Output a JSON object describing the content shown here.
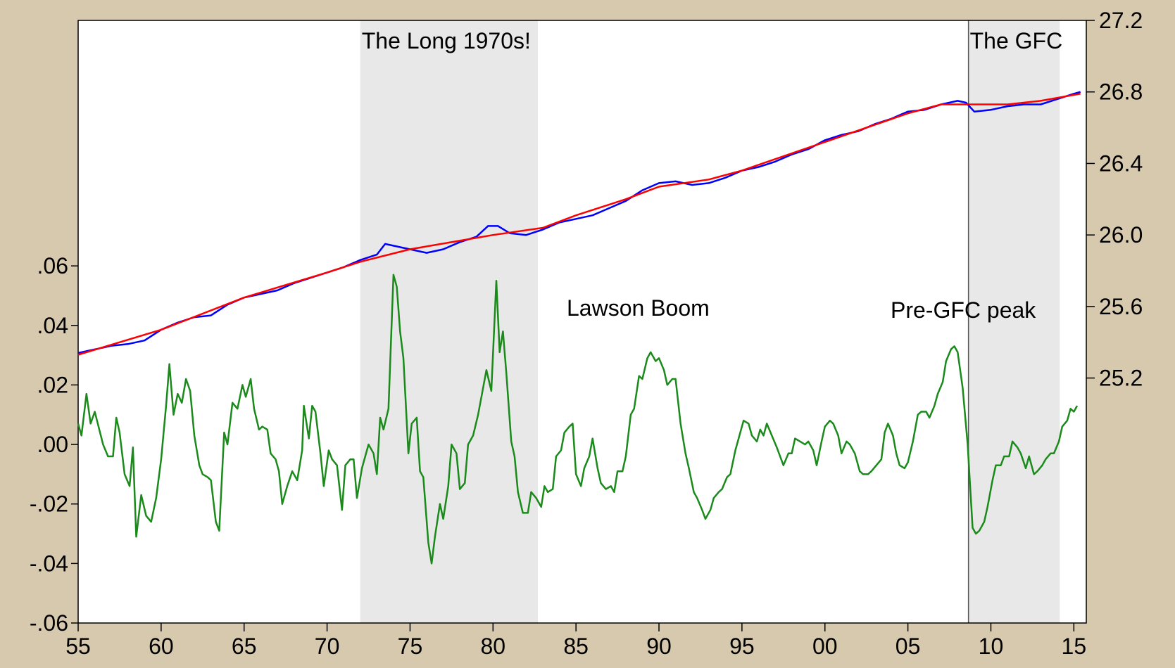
{
  "chart_data": {
    "type": "line",
    "xlim": [
      1955,
      2015.75
    ],
    "xticks": [
      {
        "value": 1955,
        "label": "55"
      },
      {
        "value": 1960,
        "label": "60"
      },
      {
        "value": 1965,
        "label": "65"
      },
      {
        "value": 1970,
        "label": "70"
      },
      {
        "value": 1975,
        "label": "75"
      },
      {
        "value": 1980,
        "label": "80"
      },
      {
        "value": 1985,
        "label": "85"
      },
      {
        "value": 1990,
        "label": "90"
      },
      {
        "value": 1995,
        "label": "95"
      },
      {
        "value": 2000,
        "label": "00"
      },
      {
        "value": 2005,
        "label": "05"
      },
      {
        "value": 2010,
        "label": "10"
      },
      {
        "value": 2015,
        "label": "15"
      }
    ],
    "ylim": [
      -0.06,
      0.1425
    ],
    "yticks": [
      {
        "value": -0.06,
        "label": "-.06"
      },
      {
        "value": -0.04,
        "label": "-.04"
      },
      {
        "value": -0.02,
        "label": "-.02"
      },
      {
        "value": 0,
        "label": ".00"
      },
      {
        "value": 0.02,
        "label": ".02"
      },
      {
        "value": 0.04,
        "label": ".04"
      },
      {
        "value": 0.06,
        "label": ".06"
      }
    ],
    "y2lim": [
      23.83,
      27.2
    ],
    "y2ticks": [
      25.2,
      25.6,
      {
        "value": 26.0,
        "label": "26.0"
      },
      26.4,
      26.8,
      27.2
    ],
    "shaded_regions": [
      {
        "start": 1972.0,
        "end": 1982.7,
        "label": "The Long 1970s!",
        "color": "#e8e8e8"
      },
      {
        "start": 2008.65,
        "end": 2014.15,
        "label": "The GFC",
        "color": "#e8e8e8"
      }
    ],
    "annotations": [
      "Lawson Boom",
      "Pre-GFC peak"
    ],
    "series": [
      {
        "color": "#1a8a1a",
        "axis": "y",
        "x": [
          1955.0,
          1955.2,
          1955.5,
          1955.75,
          1956.0,
          1956.5,
          1956.8,
          1957.1,
          1957.3,
          1957.5,
          1957.8,
          1958.1,
          1958.3,
          1958.5,
          1958.8,
          1959.1,
          1959.4,
          1959.7,
          1960.0,
          1960.3,
          1960.5,
          1960.75,
          1961.0,
          1961.25,
          1961.5,
          1961.75,
          1962.0,
          1962.3,
          1962.5,
          1962.8,
          1963.0,
          1963.3,
          1963.5,
          1963.8,
          1964.0,
          1964.3,
          1964.6,
          1964.9,
          1965.1,
          1965.4,
          1965.6,
          1965.9,
          1966.1,
          1966.4,
          1966.6,
          1966.9,
          1967.1,
          1967.3,
          1967.6,
          1967.9,
          1968.2,
          1968.5,
          1968.6,
          1968.9,
          1969.1,
          1969.3,
          1969.6,
          1969.8,
          1970.1,
          1970.3,
          1970.6,
          1970.9,
          1971.1,
          1971.4,
          1971.6,
          1971.8,
          1972.1,
          1972.3,
          1972.5,
          1972.8,
          1973.0,
          1973.2,
          1973.4,
          1973.7,
          1974.0,
          1974.2,
          1974.4,
          1974.6,
          1974.9,
          1975.1,
          1975.4,
          1975.6,
          1975.8,
          1976.1,
          1976.3,
          1976.5,
          1976.8,
          1977.0,
          1977.3,
          1977.5,
          1977.8,
          1978.0,
          1978.3,
          1978.5,
          1978.8,
          1979.1,
          1979.4,
          1979.6,
          1979.9,
          1980.2,
          1980.4,
          1980.6,
          1980.8,
          1981.1,
          1981.3,
          1981.5,
          1981.8,
          1982.1,
          1982.3,
          1982.6,
          1982.9,
          1983.1,
          1983.3,
          1983.6,
          1983.8,
          1984.1,
          1984.3,
          1984.6,
          1984.8,
          1985.0,
          1985.3,
          1985.5,
          1985.8,
          1986.0,
          1986.3,
          1986.5,
          1986.8,
          1987.1,
          1987.3,
          1987.5,
          1987.8,
          1988.0,
          1988.3,
          1988.5,
          1988.8,
          1989.0,
          1989.3,
          1989.5,
          1989.8,
          1990.0,
          1990.3,
          1990.5,
          1990.8,
          1991.0,
          1991.3,
          1991.6,
          1991.8,
          1992.1,
          1992.3,
          1992.6,
          1992.8,
          1993.1,
          1993.3,
          1993.6,
          1993.8,
          1994.1,
          1994.3,
          1994.6,
          1994.9,
          1995.1,
          1995.4,
          1995.6,
          1995.9,
          1996.1,
          1996.3,
          1996.5,
          1996.8,
          1997.1,
          1997.3,
          1997.5,
          1997.8,
          1998.0,
          1998.2,
          1998.5,
          1998.8,
          1999.0,
          1999.3,
          1999.5,
          1999.8,
          2000.0,
          2000.3,
          2000.5,
          2000.8,
          2001.0,
          2001.3,
          2001.5,
          2001.8,
          2002.1,
          2002.3,
          2002.6,
          2002.8,
          2003.1,
          2003.4,
          2003.6,
          2003.8,
          2004.1,
          2004.3,
          2004.5,
          2004.8,
          2005.0,
          2005.3,
          2005.6,
          2005.8,
          2006.1,
          2006.3,
          2006.6,
          2006.8,
          2007.1,
          2007.3,
          2007.6,
          2007.8,
          2008.0,
          2008.3,
          2008.6,
          2008.9,
          2009.1,
          2009.3,
          2009.6,
          2009.8,
          2010.1,
          2010.3,
          2010.6,
          2010.8,
          2011.1,
          2011.3,
          2011.6,
          2011.8,
          2012.1,
          2012.3,
          2012.6,
          2012.8,
          2013.1,
          2013.3,
          2013.6,
          2013.8,
          2014.1,
          2014.3,
          2014.6,
          2014.8,
          2015.0,
          2015.2
        ],
        "values": [
          0.007,
          0.003,
          0.017,
          0.007,
          0.011,
          0.0,
          -0.004,
          -0.004,
          0.009,
          0.004,
          -0.01,
          -0.014,
          -0.001,
          -0.031,
          -0.017,
          -0.024,
          -0.026,
          -0.018,
          -0.005,
          0.013,
          0.027,
          0.01,
          0.017,
          0.014,
          0.022,
          0.018,
          0.003,
          -0.007,
          -0.01,
          -0.011,
          -0.012,
          -0.026,
          -0.029,
          0.004,
          0.0,
          0.014,
          0.012,
          0.02,
          0.016,
          0.022,
          0.012,
          0.005,
          0.006,
          0.005,
          -0.003,
          -0.005,
          -0.009,
          -0.02,
          -0.014,
          -0.009,
          -0.012,
          -0.002,
          0.013,
          0.002,
          0.013,
          0.011,
          -0.003,
          -0.014,
          -0.002,
          -0.005,
          -0.007,
          -0.022,
          -0.007,
          -0.005,
          -0.005,
          -0.018,
          -0.008,
          -0.004,
          0.0,
          -0.003,
          -0.01,
          0.009,
          0.005,
          0.012,
          0.057,
          0.053,
          0.038,
          0.029,
          -0.003,
          0.007,
          0.009,
          -0.009,
          -0.011,
          -0.033,
          -0.04,
          -0.031,
          -0.02,
          -0.025,
          -0.014,
          0.0,
          -0.003,
          -0.015,
          -0.013,
          0.0,
          0.003,
          0.01,
          0.019,
          0.025,
          0.018,
          0.055,
          0.031,
          0.038,
          0.024,
          0.001,
          -0.004,
          -0.016,
          -0.023,
          -0.023,
          -0.016,
          -0.018,
          -0.021,
          -0.014,
          -0.016,
          -0.015,
          -0.004,
          -0.002,
          0.004,
          0.006,
          0.007,
          -0.01,
          -0.014,
          -0.008,
          -0.004,
          0.002,
          -0.008,
          -0.013,
          -0.015,
          -0.014,
          -0.016,
          -0.009,
          -0.009,
          -0.004,
          0.01,
          0.012,
          0.023,
          0.022,
          0.029,
          0.031,
          0.028,
          0.029,
          0.025,
          0.02,
          0.022,
          0.022,
          0.007,
          -0.003,
          -0.008,
          -0.016,
          -0.018,
          -0.022,
          -0.025,
          -0.022,
          -0.018,
          -0.016,
          -0.015,
          -0.011,
          -0.01,
          -0.002,
          0.004,
          0.008,
          0.007,
          0.003,
          0.001,
          0.005,
          0.003,
          0.007,
          0.003,
          -0.001,
          -0.004,
          -0.007,
          -0.003,
          -0.003,
          0.002,
          0.001,
          0.0,
          0.001,
          -0.002,
          -0.007,
          0.001,
          0.006,
          0.008,
          0.007,
          0.003,
          -0.003,
          0.001,
          0.0,
          -0.003,
          -0.009,
          -0.01,
          -0.01,
          -0.009,
          -0.007,
          -0.005,
          0.004,
          0.007,
          0.003,
          -0.003,
          -0.007,
          -0.008,
          -0.006,
          0.001,
          0.01,
          0.011,
          0.011,
          0.009,
          0.013,
          0.017,
          0.021,
          0.028,
          0.032,
          0.033,
          0.031,
          0.019,
          0.0,
          -0.028,
          -0.03,
          -0.029,
          -0.026,
          -0.021,
          -0.012,
          -0.007,
          -0.007,
          -0.004,
          -0.004,
          0.001,
          -0.001,
          -0.003,
          -0.008,
          -0.004,
          -0.01,
          -0.009,
          -0.007,
          -0.005,
          -0.003,
          -0.003,
          0.001,
          0.006,
          0.008,
          0.012,
          0.011,
          0.013
        ]
      },
      {
        "color": "#0000ff",
        "axis": "y2",
        "x": [
          1955,
          1956,
          1957,
          1958,
          1959,
          1960,
          1961,
          1962,
          1963,
          1964,
          1965,
          1966,
          1967,
          1968,
          1969,
          1970,
          1971,
          1972,
          1973,
          1973.5,
          1974.5,
          1975,
          1976,
          1977,
          1978,
          1979,
          1979.7,
          1980.3,
          1981,
          1982,
          1983,
          1984,
          1985,
          1986,
          1987,
          1988,
          1989,
          1990,
          1991,
          1992,
          1993,
          1994,
          1995,
          1996,
          1997,
          1998,
          1999,
          2000,
          2001,
          2002,
          2003,
          2004,
          2005,
          2006,
          2007,
          2008,
          2008.5,
          2009,
          2010,
          2011,
          2012,
          2013,
          2014,
          2015,
          2015.4
        ],
        "values": [
          25.34,
          25.36,
          25.38,
          25.39,
          25.41,
          25.47,
          25.51,
          25.54,
          25.55,
          25.61,
          25.65,
          25.67,
          25.69,
          25.73,
          25.76,
          25.79,
          25.82,
          25.86,
          25.89,
          25.95,
          25.93,
          25.92,
          25.9,
          25.92,
          25.96,
          25.99,
          26.05,
          26.05,
          26.01,
          26.0,
          26.03,
          26.07,
          26.09,
          26.11,
          26.15,
          26.19,
          26.25,
          26.29,
          26.3,
          26.28,
          26.29,
          26.32,
          26.36,
          26.38,
          26.41,
          26.45,
          26.48,
          26.53,
          26.56,
          26.58,
          26.62,
          26.65,
          26.69,
          26.7,
          26.73,
          26.75,
          26.74,
          26.69,
          26.7,
          26.72,
          26.73,
          26.73,
          26.76,
          26.79,
          26.8
        ]
      },
      {
        "color": "#ff0000",
        "axis": "y2",
        "x": [
          1955,
          1960,
          1965,
          1970,
          1972,
          1975,
          1980,
          1983,
          1985,
          1988,
          1990,
          1993,
          1995,
          2000,
          2005,
          2007,
          2009,
          2011,
          2013,
          2015.4
        ],
        "values": [
          25.33,
          25.47,
          25.65,
          25.79,
          25.85,
          25.92,
          26.0,
          26.04,
          26.11,
          26.2,
          26.27,
          26.31,
          26.36,
          26.52,
          26.68,
          26.73,
          26.73,
          26.73,
          26.75,
          26.79
        ]
      }
    ]
  }
}
